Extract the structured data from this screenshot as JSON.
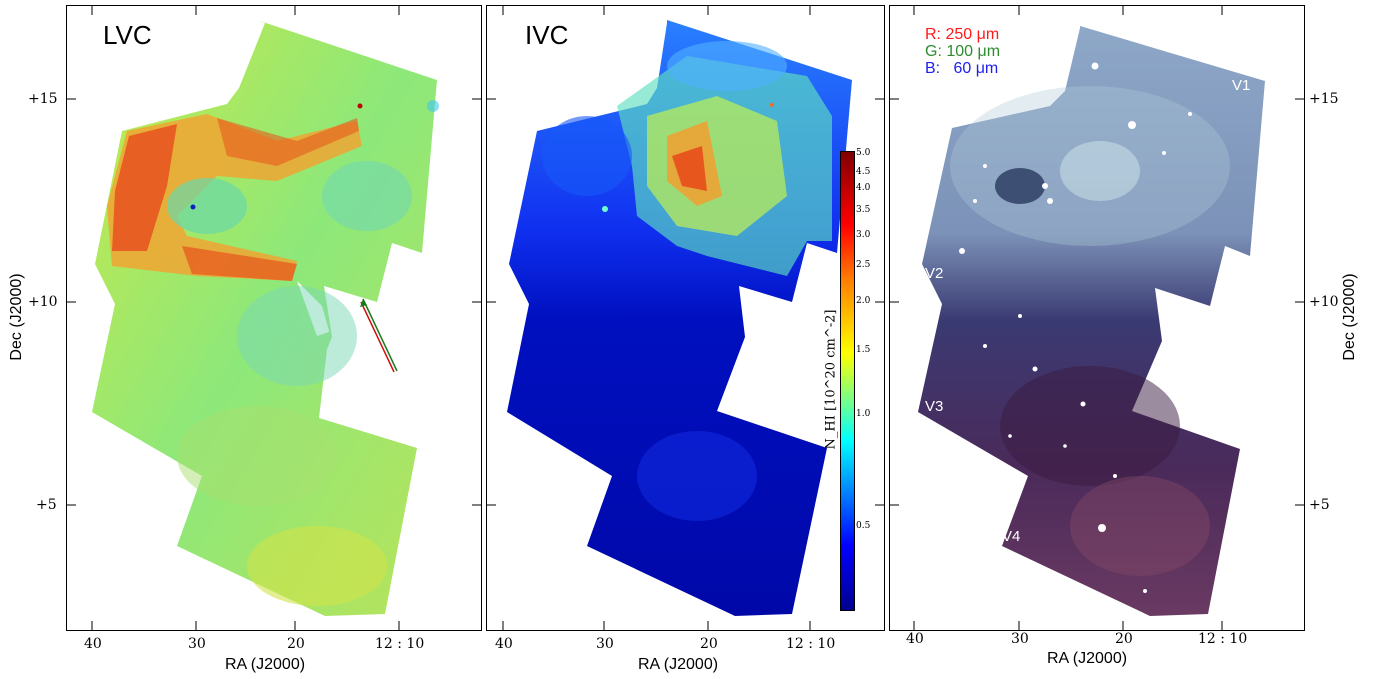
{
  "panels": {
    "lvc": {
      "title": "LVC"
    },
    "ivc": {
      "title": "IVC"
    },
    "rgb": {
      "legend": {
        "r": {
          "label": "R:",
          "value": "250 μm",
          "color": "#ff1a1a"
        },
        "g": {
          "label": "G:",
          "value": "100 μm",
          "color": "#2e8b2e"
        },
        "b": {
          "label": "B:",
          "value": "  60 μm",
          "color": "#2020ee"
        }
      },
      "markers": [
        "V1",
        "V2",
        "V3",
        "V4"
      ]
    }
  },
  "axes": {
    "xlabel": "RA (J2000)",
    "ylabel": "Dec (J2000)",
    "xticks": [
      "40",
      "30",
      "20",
      "12 : 10"
    ],
    "yticks": [
      "+15",
      "+10",
      "+5"
    ]
  },
  "colorbar": {
    "label": "N_HI [10^20 cm^-2]",
    "ticks": [
      "5.0",
      "4.5",
      "4.0",
      "3.5",
      "3.0",
      "2.5",
      "2.0",
      "1.5",
      "1.0",
      "0.5"
    ],
    "colors": [
      "#00008f",
      "#0000ff",
      "#00ffff",
      "#ffff00",
      "#ff0000",
      "#800000"
    ]
  }
}
